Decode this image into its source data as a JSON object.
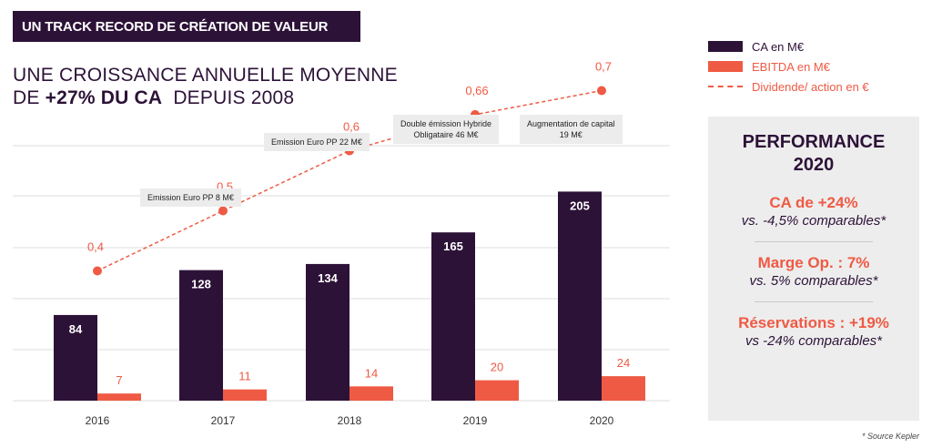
{
  "header": {
    "banner": "UN TRACK RECORD DE CRÉATION DE VALEUR",
    "subtitle_line1": "UNE CROISSANCE ANNUELLE MOYENNE",
    "subtitle_line2_prefix": "DE ",
    "subtitle_line2_bold": "+27% DU CA",
    "subtitle_line2_suffix": "  DEPUIS 2008"
  },
  "legend": {
    "ca": "CA en M€",
    "ebitda": "EBITDA en M€",
    "dividend": "Dividende/ action en €"
  },
  "colors": {
    "ca": "#2d1238",
    "ebitda": "#ef5a44",
    "dividend": "#ef5a44"
  },
  "annotations": [
    {
      "text": "Emission Euro PP 8 M€",
      "year": "2017"
    },
    {
      "text": "Emission Euro PP 22 M€",
      "year": "2018"
    },
    {
      "text": "Double émission Hybride\nObligataire 46 M€",
      "year": "2019"
    },
    {
      "text": "Augmentation de capital\n19 M€",
      "year": "2020"
    }
  ],
  "chart_data": {
    "type": "bar",
    "categories": [
      "2016",
      "2017",
      "2018",
      "2019",
      "2020"
    ],
    "series": [
      {
        "name": "CA en M€",
        "type": "bar",
        "values": [
          84,
          128,
          134,
          165,
          205
        ]
      },
      {
        "name": "EBITDA en M€",
        "type": "bar",
        "values": [
          7,
          11,
          14,
          20,
          24
        ]
      },
      {
        "name": "Dividende/ action en €",
        "type": "line",
        "values": [
          "0,4",
          "0,5",
          "0,6",
          "0,66",
          "0,7"
        ],
        "numeric": [
          0.4,
          0.5,
          0.6,
          0.66,
          0.7
        ]
      }
    ],
    "grid": true,
    "legend_position": "top-right"
  },
  "performance": {
    "title_line1": "PERFORMANCE",
    "title_line2": "2020",
    "items": [
      {
        "main": "CA de +24%",
        "sub": "vs. -4,5% comparables*"
      },
      {
        "main": "Marge Op. : 7%",
        "sub": "vs. 5% comparables*"
      },
      {
        "main": "Réservations : +19%",
        "sub": "vs -24% comparables*"
      }
    ]
  },
  "source": "* Source Kepler"
}
